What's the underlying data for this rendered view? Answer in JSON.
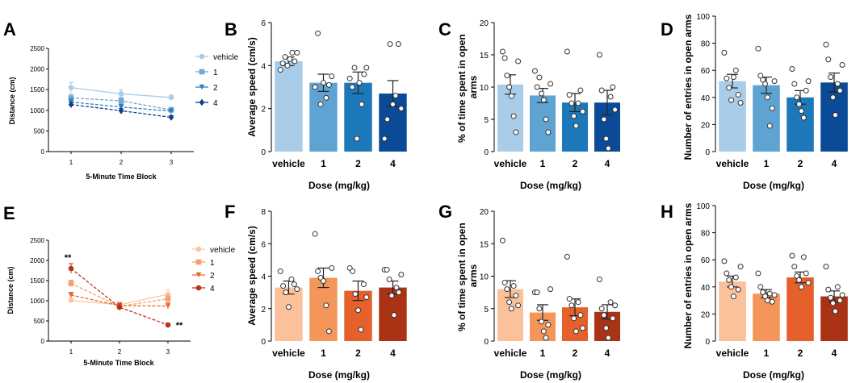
{
  "chart_data": [
    {
      "id": "A",
      "letter": "A",
      "type": "line",
      "xlabel": "5-Minute Time Block",
      "ylabel": "Distance (cm)",
      "categories": [
        "1",
        "2",
        "3"
      ],
      "ylim": [
        0,
        2500
      ],
      "yticks": [
        0,
        500,
        1000,
        1500,
        2000,
        2500
      ],
      "series": [
        {
          "name": "vehicle",
          "color": "#a9cce8",
          "marker": "circle",
          "values": [
            1550,
            1400,
            1310
          ],
          "errors": [
            120,
            100,
            60
          ]
        },
        {
          "name": "1",
          "color": "#6fa9d6",
          "marker": "square",
          "values": [
            1300,
            1230,
            1010
          ],
          "errors": [
            90,
            80,
            60
          ]
        },
        {
          "name": "2",
          "color": "#2f7fc0",
          "marker": "triangle",
          "values": [
            1200,
            1080,
            980
          ],
          "errors": [
            80,
            70,
            50
          ]
        },
        {
          "name": "4",
          "color": "#0e3f8a",
          "marker": "diamond",
          "values": [
            1140,
            990,
            830
          ],
          "errors": [
            60,
            50,
            40
          ]
        }
      ],
      "annotations": []
    },
    {
      "id": "B",
      "letter": "B",
      "type": "bar",
      "xlabel": "Dose (mg/kg)",
      "ylabel": "Average speed (cm/s)",
      "categories": [
        "vehicle",
        "1",
        "2",
        "4"
      ],
      "ylim": [
        0,
        6
      ],
      "yticks": [
        0,
        2,
        4,
        6
      ],
      "colors": [
        "#a9cde9",
        "#5fa3d2",
        "#1c78b8",
        "#0a4a96"
      ],
      "values": [
        4.2,
        3.2,
        3.2,
        2.7
      ],
      "errors": [
        0.2,
        0.4,
        0.5,
        0.6
      ],
      "points": [
        [
          3.8,
          4.1,
          4.4,
          4.0,
          4.3,
          4.6,
          4.2,
          4.6
        ],
        [
          3.0,
          5.5,
          2.2,
          3.2,
          2.5,
          3.1,
          3.5
        ],
        [
          3.4,
          3.0,
          3.9,
          0.6,
          3.2,
          2.2,
          3.6,
          3.9
        ],
        [
          0.6,
          1.5,
          5.0,
          2.2,
          2.6,
          5.0,
          2.0
        ]
      ]
    },
    {
      "id": "C",
      "letter": "C",
      "type": "bar",
      "xlabel": "Dose (mg/kg)",
      "ylabel": "% of time spent in open arms",
      "categories": [
        "vehicle",
        "1",
        "2",
        "4"
      ],
      "ylim": [
        0,
        20
      ],
      "yticks": [
        0,
        5,
        10,
        15,
        20
      ],
      "colors": [
        "#a9cde9",
        "#5fa3d2",
        "#1c78b8",
        "#0a4a96"
      ],
      "values": [
        10.4,
        8.7,
        7.6,
        7.6
      ],
      "errors": [
        1.5,
        1.1,
        1.4,
        1.9
      ],
      "points": [
        [
          15.5,
          14.5,
          11.8,
          10.0,
          8.6,
          5.5,
          3.0,
          14.0
        ],
        [
          12.5,
          10.0,
          11.5,
          9.0,
          8.0,
          5.0,
          3.0,
          10.5
        ],
        [
          15.5,
          8.8,
          7.5,
          5.5,
          4.0,
          7.5,
          9.5,
          6.2
        ],
        [
          15.0,
          9.5,
          5.0,
          2.0,
          0.5,
          8.5,
          10.0,
          6.5
        ]
      ]
    },
    {
      "id": "D",
      "letter": "D",
      "type": "bar",
      "xlabel": "Dose (mg/kg)",
      "ylabel": "Number of entries in open arms",
      "categories": [
        "vehicle",
        "1",
        "2",
        "4"
      ],
      "ylim": [
        0,
        100
      ],
      "yticks": [
        0,
        20,
        40,
        60,
        80,
        100
      ],
      "colors": [
        "#a9cde9",
        "#5fa3d2",
        "#1c78b8",
        "#0a4a96"
      ],
      "values": [
        52,
        49,
        40,
        51
      ],
      "errors": [
        5,
        6,
        5,
        7
      ],
      "points": [
        [
          73,
          54,
          47,
          38,
          55,
          60,
          42,
          36
        ],
        [
          76,
          56,
          53,
          50,
          40,
          19,
          32,
          52
        ],
        [
          61,
          50,
          40,
          35,
          30,
          25,
          45,
          52
        ],
        [
          79,
          68,
          55,
          40,
          27,
          50,
          45,
          64
        ]
      ]
    },
    {
      "id": "E",
      "letter": "E",
      "type": "line",
      "xlabel": "5-Minute Time Block",
      "ylabel": "Distance (cm)",
      "categories": [
        "1",
        "2",
        "3"
      ],
      "ylim": [
        0,
        2500
      ],
      "yticks": [
        0,
        500,
        1000,
        1500,
        2000,
        2500
      ],
      "series": [
        {
          "name": "vehicle",
          "color": "#fbc7a0",
          "marker": "circle",
          "values": [
            1010,
            900,
            1160
          ],
          "errors": [
            50,
            80,
            120
          ]
        },
        {
          "name": "1",
          "color": "#f4a16f",
          "marker": "square",
          "values": [
            1430,
            860,
            1050
          ],
          "errors": [
            80,
            80,
            90
          ]
        },
        {
          "name": "2",
          "color": "#e8692e",
          "marker": "triangle",
          "values": [
            1140,
            880,
            870
          ],
          "errors": [
            70,
            70,
            80
          ]
        },
        {
          "name": "4",
          "color": "#b9361a",
          "marker": "circle",
          "values": [
            1800,
            840,
            400
          ],
          "errors": [
            120,
            80,
            40
          ]
        }
      ],
      "annotations": [
        "**",
        "**"
      ]
    },
    {
      "id": "F",
      "letter": "F",
      "type": "bar",
      "xlabel": "Dose (mg/kg)",
      "ylabel": "Average speed (cm/s)",
      "categories": [
        "vehicle",
        "1",
        "2",
        "4"
      ],
      "ylim": [
        0,
        8
      ],
      "yticks": [
        0,
        2,
        4,
        6,
        8
      ],
      "colors": [
        "#fbc19a",
        "#f4955a",
        "#e5602a",
        "#aa3316"
      ],
      "values": [
        3.3,
        3.9,
        3.1,
        3.3
      ],
      "errors": [
        0.4,
        0.6,
        0.6,
        0.4
      ],
      "points": [
        [
          4.3,
          3.4,
          3.0,
          2.1,
          3.8,
          3.5,
          3.2
        ],
        [
          6.6,
          4.3,
          3.9,
          3.7,
          2.2,
          0.6,
          4.5
        ],
        [
          4.5,
          4.3,
          2.9,
          1.9,
          0.7,
          3.5,
          2.7
        ],
        [
          4.4,
          4.4,
          3.8,
          2.8,
          1.6,
          3.3,
          3.0,
          4.1
        ]
      ]
    },
    {
      "id": "G",
      "letter": "G",
      "type": "bar",
      "xlabel": "Dose (mg/kg)",
      "ylabel": "% of time spent in open arms",
      "categories": [
        "vehicle",
        "1",
        "2",
        "4"
      ],
      "ylim": [
        0,
        20
      ],
      "yticks": [
        0,
        5,
        10,
        15,
        20
      ],
      "colors": [
        "#fbc19a",
        "#f4955a",
        "#e5602a",
        "#aa3316"
      ],
      "values": [
        8.0,
        4.4,
        5.2,
        4.5
      ],
      "errors": [
        1.3,
        1.2,
        1.3,
        1.1
      ],
      "points": [
        [
          15.5,
          9.0,
          8.0,
          6.0,
          5.0,
          8.5,
          7.0,
          5.5
        ],
        [
          7.5,
          7.5,
          5.0,
          3.0,
          1.5,
          0.5,
          2.5,
          8.0
        ],
        [
          13.0,
          6.5,
          5.5,
          3.5,
          1.5,
          6.0,
          4.0,
          2.0
        ],
        [
          9.5,
          5.0,
          4.0,
          2.0,
          0.5,
          6.0,
          3.5,
          5.5
        ]
      ]
    },
    {
      "id": "H",
      "letter": "H",
      "type": "bar",
      "xlabel": "Dose (mg/kg)",
      "ylabel": "Number of entries in open arms",
      "categories": [
        "vehicle",
        "1",
        "2",
        "4"
      ],
      "ylim": [
        0,
        100
      ],
      "yticks": [
        0,
        20,
        40,
        60,
        80,
        100
      ],
      "colors": [
        "#fbc19a",
        "#f4955a",
        "#e5602a",
        "#aa3316"
      ],
      "values": [
        44,
        35,
        47,
        33
      ],
      "errors": [
        4,
        3,
        4,
        4
      ],
      "points": [
        [
          59,
          50,
          45,
          40,
          33,
          47,
          38,
          55
        ],
        [
          50,
          40,
          36,
          33,
          30,
          35,
          29,
          34
        ],
        [
          63,
          55,
          48,
          45,
          40,
          62,
          50,
          43
        ],
        [
          55,
          38,
          32,
          28,
          22,
          40,
          30,
          34
        ]
      ]
    }
  ]
}
